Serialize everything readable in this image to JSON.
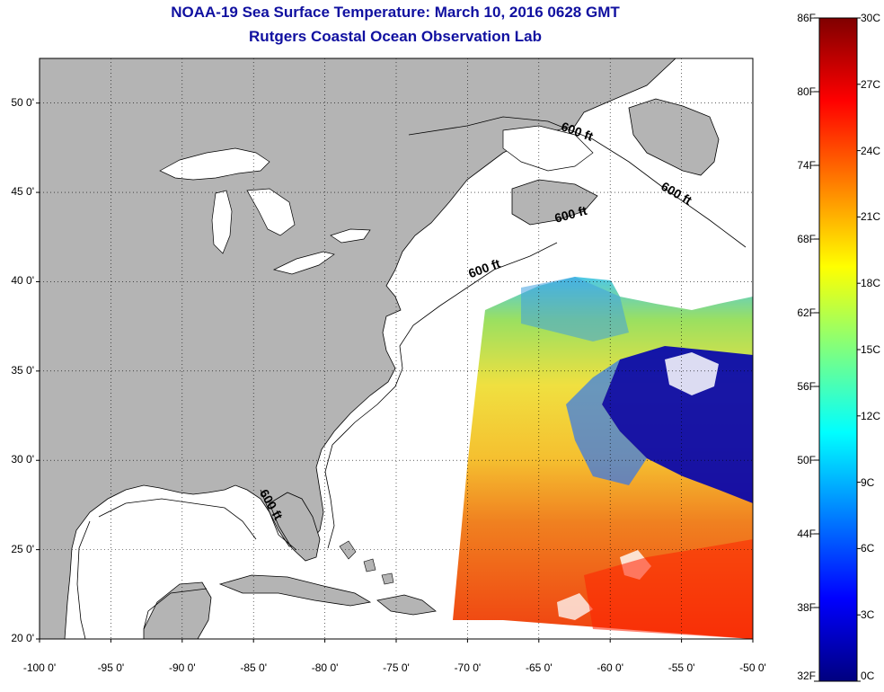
{
  "title": "NOAA-19 Sea Surface Temperature:  March 10, 2016 0628 GMT",
  "subtitle": "Rutgers Coastal Ocean Observation Lab",
  "map": {
    "lon_range": [
      -100,
      -50
    ],
    "lat_range": [
      20,
      52.5
    ],
    "y_ticks": [
      {
        "lat": 50,
        "label": "50 0'"
      },
      {
        "lat": 45,
        "label": "45 0'"
      },
      {
        "lat": 40,
        "label": "40 0'"
      },
      {
        "lat": 35,
        "label": "35 0'"
      },
      {
        "lat": 30,
        "label": "30 0'"
      },
      {
        "lat": 25,
        "label": "25 0'"
      },
      {
        "lat": 20,
        "label": "20 0'"
      }
    ],
    "x_ticks": [
      {
        "lon": -100,
        "label": "-100 0'"
      },
      {
        "lon": -95,
        "label": "-95 0'"
      },
      {
        "lon": -90,
        "label": "-90 0'"
      },
      {
        "lon": -85,
        "label": "-85 0'"
      },
      {
        "lon": -80,
        "label": "-80 0'"
      },
      {
        "lon": -75,
        "label": "-75 0'"
      },
      {
        "lon": -70,
        "label": "-70 0'"
      },
      {
        "lon": -65,
        "label": "-65 0'"
      },
      {
        "lon": -60,
        "label": "-60 0'"
      },
      {
        "lon": -55,
        "label": "-55 0'"
      },
      {
        "lon": -50,
        "label": "-50 0'"
      }
    ],
    "grid": "dotted",
    "land_color": "#b4b4b4",
    "no_data_color": "#ffffff",
    "contour_label": "600 ft",
    "contour_labels": [
      {
        "text": "600 ft",
        "lon": -63.5,
        "lat": 48.5
      },
      {
        "text": "600 ft",
        "lon": -56.5,
        "lat": 45.2
      },
      {
        "text": "600 ft",
        "lon": -63.8,
        "lat": 43.3
      },
      {
        "text": "600 ft",
        "lon": -69.8,
        "lat": 40.2
      },
      {
        "text": "600 ft",
        "lon": -84.6,
        "lat": 28.2
      }
    ]
  },
  "colorbar": {
    "fahrenheit_labels": [
      "86F",
      "80F",
      "74F",
      "68F",
      "62F",
      "56F",
      "50F",
      "44F",
      "38F",
      "32F"
    ],
    "celsius_labels": [
      "30C",
      "27C",
      "24C",
      "21C",
      "18C",
      "15C",
      "12C",
      "9C",
      "6C",
      "3C",
      "0C"
    ],
    "range_c": [
      0,
      30
    ],
    "colors": [
      "#00007f",
      "#0000ff",
      "#007fff",
      "#00ffff",
      "#7fff7f",
      "#ffff00",
      "#ff7f00",
      "#ff0000",
      "#7f0000"
    ]
  }
}
